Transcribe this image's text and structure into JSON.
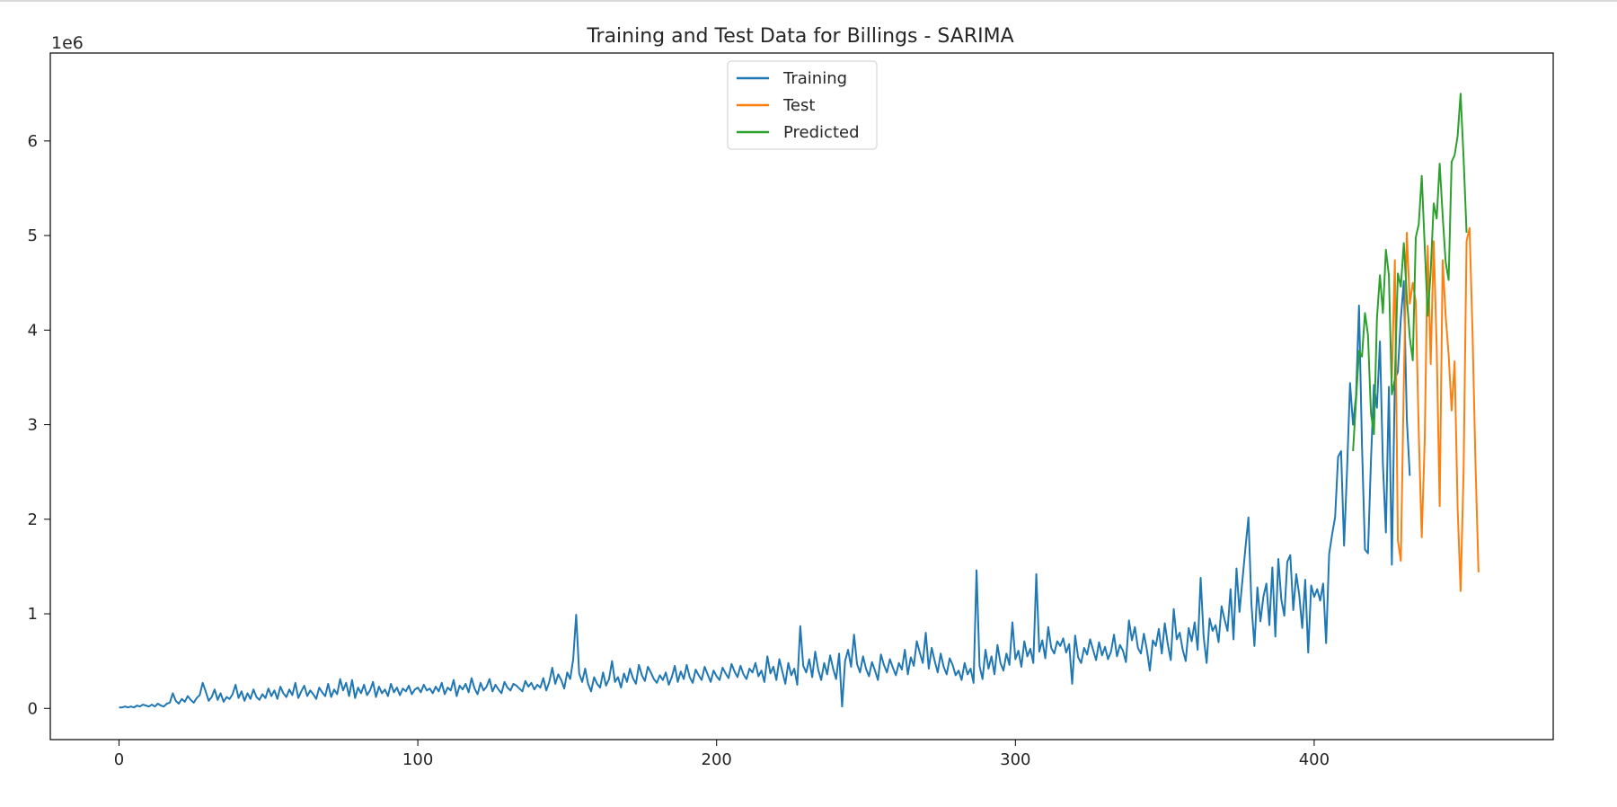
{
  "chart_data": {
    "type": "line",
    "title": "Training and Test Data for Billings - SARIMA",
    "xlabel": "",
    "ylabel": "",
    "y_offset_text": "1e6",
    "xlim": [
      -23,
      480
    ],
    "ylim": [
      -0.33,
      6.93
    ],
    "x_ticks": [
      0,
      100,
      200,
      300,
      400
    ],
    "y_ticks": [
      0,
      1,
      2,
      3,
      4,
      5,
      6
    ],
    "legend_position": "top-center",
    "grid": false,
    "series": [
      {
        "name": "Training",
        "color": "#1f77b4",
        "x_start": 0,
        "values": [
          0.01,
          0.01,
          0.02,
          0.01,
          0.02,
          0.01,
          0.03,
          0.02,
          0.04,
          0.03,
          0.02,
          0.04,
          0.02,
          0.05,
          0.03,
          0.02,
          0.05,
          0.06,
          0.16,
          0.08,
          0.05,
          0.1,
          0.07,
          0.13,
          0.09,
          0.06,
          0.11,
          0.14,
          0.27,
          0.18,
          0.08,
          0.12,
          0.2,
          0.09,
          0.16,
          0.07,
          0.12,
          0.1,
          0.15,
          0.25,
          0.11,
          0.18,
          0.08,
          0.16,
          0.1,
          0.2,
          0.12,
          0.09,
          0.15,
          0.11,
          0.21,
          0.13,
          0.19,
          0.1,
          0.23,
          0.16,
          0.12,
          0.2,
          0.14,
          0.27,
          0.11,
          0.18,
          0.24,
          0.13,
          0.19,
          0.15,
          0.1,
          0.22,
          0.17,
          0.13,
          0.26,
          0.12,
          0.2,
          0.15,
          0.31,
          0.19,
          0.27,
          0.13,
          0.3,
          0.11,
          0.22,
          0.16,
          0.25,
          0.14,
          0.19,
          0.28,
          0.12,
          0.23,
          0.16,
          0.2,
          0.13,
          0.26,
          0.17,
          0.22,
          0.14,
          0.21,
          0.18,
          0.24,
          0.15,
          0.2,
          0.22,
          0.17,
          0.25,
          0.19,
          0.21,
          0.16,
          0.23,
          0.18,
          0.27,
          0.15,
          0.22,
          0.19,
          0.3,
          0.13,
          0.24,
          0.2,
          0.26,
          0.17,
          0.32,
          0.21,
          0.15,
          0.27,
          0.19,
          0.23,
          0.31,
          0.18,
          0.25,
          0.2,
          0.16,
          0.28,
          0.22,
          0.19,
          0.26,
          0.24,
          0.21,
          0.18,
          0.29,
          0.23,
          0.27,
          0.2,
          0.25,
          0.22,
          0.32,
          0.19,
          0.28,
          0.43,
          0.26,
          0.36,
          0.3,
          0.21,
          0.38,
          0.31,
          0.52,
          0.99,
          0.37,
          0.28,
          0.42,
          0.26,
          0.18,
          0.33,
          0.26,
          0.22,
          0.38,
          0.24,
          0.31,
          0.5,
          0.28,
          0.33,
          0.22,
          0.37,
          0.28,
          0.42,
          0.32,
          0.26,
          0.46,
          0.35,
          0.29,
          0.44,
          0.38,
          0.31,
          0.27,
          0.35,
          0.3,
          0.38,
          0.25,
          0.33,
          0.45,
          0.28,
          0.39,
          0.31,
          0.46,
          0.33,
          0.27,
          0.41,
          0.35,
          0.3,
          0.44,
          0.36,
          0.28,
          0.4,
          0.34,
          0.3,
          0.43,
          0.37,
          0.32,
          0.47,
          0.39,
          0.33,
          0.45,
          0.36,
          0.31,
          0.42,
          0.38,
          0.48,
          0.34,
          0.4,
          0.28,
          0.55,
          0.37,
          0.44,
          0.3,
          0.52,
          0.39,
          0.26,
          0.48,
          0.35,
          0.42,
          0.25,
          0.87,
          0.45,
          0.38,
          0.52,
          0.33,
          0.6,
          0.41,
          0.3,
          0.48,
          0.36,
          0.56,
          0.42,
          0.31,
          0.58,
          0.02,
          0.5,
          0.62,
          0.44,
          0.78,
          0.47,
          0.38,
          0.55,
          0.42,
          0.34,
          0.49,
          0.4,
          0.3,
          0.57,
          0.46,
          0.38,
          0.52,
          0.43,
          0.35,
          0.48,
          0.41,
          0.62,
          0.36,
          0.54,
          0.45,
          0.71,
          0.59,
          0.48,
          0.8,
          0.42,
          0.64,
          0.5,
          0.38,
          0.58,
          0.44,
          0.36,
          0.53,
          0.46,
          0.35,
          0.4,
          0.3,
          0.48,
          0.36,
          0.42,
          0.27,
          1.46,
          0.45,
          0.31,
          0.62,
          0.42,
          0.55,
          0.36,
          0.67,
          0.48,
          0.4,
          0.58,
          0.46,
          0.91,
          0.52,
          0.61,
          0.44,
          0.71,
          0.55,
          0.63,
          0.48,
          1.42,
          0.6,
          0.72,
          0.53,
          0.86,
          0.64,
          0.58,
          0.71,
          0.66,
          0.74,
          0.59,
          0.68,
          0.26,
          0.77,
          0.54,
          0.48,
          0.64,
          0.57,
          0.73,
          0.62,
          0.51,
          0.7,
          0.56,
          0.65,
          0.52,
          0.6,
          0.78,
          0.55,
          0.67,
          0.61,
          0.49,
          0.93,
          0.72,
          0.86,
          0.64,
          0.58,
          0.79,
          0.62,
          0.4,
          0.72,
          0.66,
          0.84,
          0.58,
          0.9,
          0.68,
          0.51,
          1.05,
          0.73,
          0.8,
          0.62,
          0.5,
          0.85,
          0.71,
          0.91,
          0.62,
          1.38,
          0.76,
          0.48,
          0.95,
          0.82,
          0.88,
          0.7,
          1.08,
          0.94,
          0.82,
          1.26,
          0.73,
          1.48,
          1.02,
          1.36,
          1.7,
          2.02,
          1.1,
          0.66,
          1.28,
          0.92,
          1.18,
          1.32,
          0.88,
          1.49,
          0.76,
          1.58,
          1.15,
          0.98,
          1.55,
          1.62,
          1.04,
          1.42,
          1.2,
          0.85,
          1.36,
          0.59,
          1.3,
          1.18,
          1.26,
          1.14,
          1.32,
          0.69,
          1.63,
          1.84,
          2.02,
          2.66,
          2.72,
          1.72,
          2.52,
          3.44,
          3.0,
          3.3,
          4.26,
          2.78,
          1.68,
          1.64,
          2.62,
          3.42,
          3.18,
          3.88,
          2.58,
          1.86,
          3.4,
          1.52,
          3.48,
          3.56,
          4.12,
          4.52,
          3.06,
          2.46
        ]
      },
      {
        "name": "Test",
        "color": "#ff7f0e",
        "x_start": 426,
        "values": [
          3.49,
          4.74,
          1.78,
          1.56,
          3.44,
          5.03,
          4.28,
          4.5,
          4.3,
          2.91,
          1.81,
          2.84,
          4.89,
          3.64,
          4.94,
          3.82,
          2.14,
          4.74,
          4.15,
          3.74,
          3.15,
          3.67,
          2.13,
          1.24,
          2.5,
          4.94,
          5.08,
          3.97,
          2.57,
          1.44
        ]
      },
      {
        "name": "Predicted",
        "color": "#2ca02c",
        "x_start": 413,
        "values": [
          2.72,
          3.25,
          3.78,
          3.72,
          4.18,
          3.95,
          3.12,
          2.9,
          4.12,
          4.58,
          4.18,
          4.85,
          4.58,
          3.32,
          3.48,
          4.6,
          4.46,
          4.92,
          4.35,
          3.92,
          3.68,
          4.98,
          5.12,
          5.63,
          4.88,
          4.15,
          4.62,
          5.34,
          5.18,
          5.76,
          5.21,
          4.72,
          4.53,
          5.78,
          5.85,
          6.05,
          6.5,
          5.82,
          5.03
        ]
      }
    ]
  }
}
